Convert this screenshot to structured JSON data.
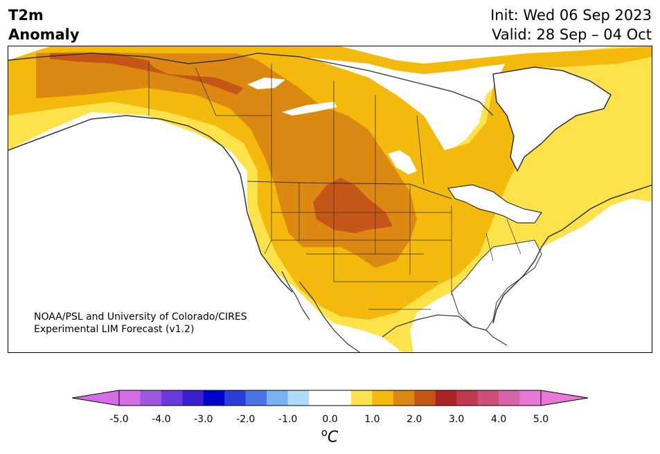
{
  "header": {
    "title_line1": "T2m",
    "title_line2": "Anomaly",
    "init": "Init: Wed 06 Sep 2023",
    "valid": "Valid: 28 Sep – 04 Oct"
  },
  "map": {
    "region": "North America",
    "credit_line1": "NOAA/PSL and University of Colorado/CIRES",
    "credit_line2": "Experimental LIM Forecast (v1.2)",
    "anomaly_fill_colors": {
      "0.5": "#fde24c",
      "1.0": "#f3b90c",
      "1.5": "#db8913",
      "2.0": "#c65618"
    },
    "land_outline_color": "#333333"
  },
  "colorbar": {
    "units_base": "C",
    "units_super": "o",
    "tick_labels": [
      "-5.0",
      "-4.0",
      "-3.0",
      "-2.0",
      "-1.0",
      "0.0",
      "1.0",
      "2.0",
      "3.0",
      "4.0",
      "5.0"
    ],
    "bins": [
      {
        "from": -5.0,
        "to": -4.5,
        "color": "#d36ee6"
      },
      {
        "from": -4.5,
        "to": -4.0,
        "color": "#9c59e0"
      },
      {
        "from": -4.0,
        "to": -3.5,
        "color": "#6a3bdc"
      },
      {
        "from": -3.5,
        "to": -3.0,
        "color": "#3a1fd0"
      },
      {
        "from": -3.0,
        "to": -2.5,
        "color": "#0000cc"
      },
      {
        "from": -2.5,
        "to": -2.0,
        "color": "#2a3ed8"
      },
      {
        "from": -2.0,
        "to": -1.5,
        "color": "#4b73e4"
      },
      {
        "from": -1.5,
        "to": -1.0,
        "color": "#79b2f2"
      },
      {
        "from": -1.0,
        "to": -0.5,
        "color": "#aedcf8"
      },
      {
        "from": -0.5,
        "to": 0.0,
        "color": "#ffffff"
      },
      {
        "from": 0.0,
        "to": 0.5,
        "color": "#ffffff"
      },
      {
        "from": 0.5,
        "to": 1.0,
        "color": "#fde24c"
      },
      {
        "from": 1.0,
        "to": 1.5,
        "color": "#f3b90c"
      },
      {
        "from": 1.5,
        "to": 2.0,
        "color": "#db8913"
      },
      {
        "from": 2.0,
        "to": 2.5,
        "color": "#c65618"
      },
      {
        "from": 2.5,
        "to": 3.0,
        "color": "#ad2424"
      },
      {
        "from": 3.0,
        "to": 3.5,
        "color": "#c0394e"
      },
      {
        "from": 3.5,
        "to": 4.0,
        "color": "#cf4f7c"
      },
      {
        "from": 4.0,
        "to": 4.5,
        "color": "#d963a9"
      },
      {
        "from": 4.5,
        "to": 5.0,
        "color": "#e679d8"
      }
    ],
    "under_color": "#d36ee6",
    "over_color": "#e679d8"
  }
}
